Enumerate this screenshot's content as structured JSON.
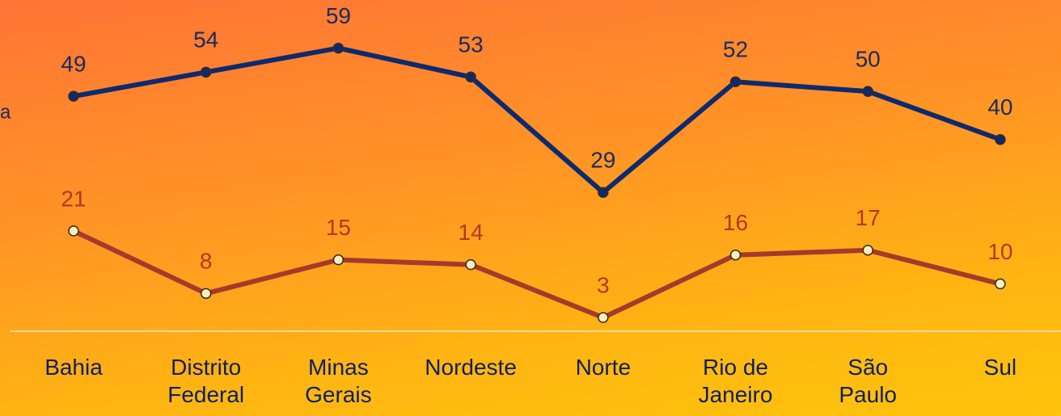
{
  "chart_data": {
    "type": "line",
    "categories": [
      "Bahia",
      "Distrito\nFederal",
      "Minas\nGerais",
      "Nordeste",
      "Norte",
      "Rio de\nJaneiro",
      "São\nPaulo",
      "Sul"
    ],
    "series": [
      {
        "name": "a",
        "color": "#0e2a6e",
        "label_color": "#1b2b5e",
        "marker_color": "#0e2a6e",
        "values": [
          49,
          54,
          59,
          53,
          29,
          52,
          50,
          40
        ]
      },
      {
        "color": "#a53a2c",
        "label_color": "#b3391f",
        "marker_color": "#f3efc0",
        "values": [
          21,
          8,
          15,
          14,
          3,
          16,
          17,
          10
        ]
      }
    ],
    "ylim": [
      0,
      69
    ]
  }
}
